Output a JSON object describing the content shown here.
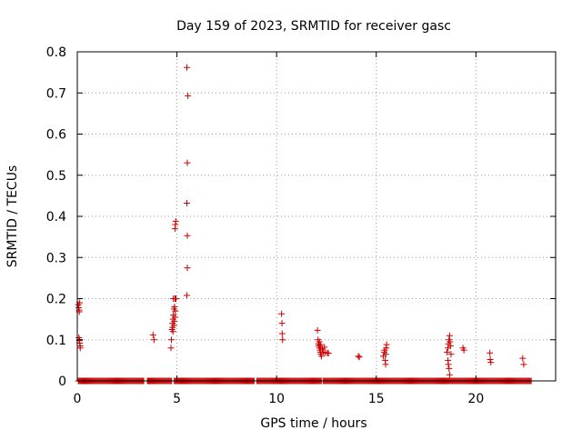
{
  "chart_data": {
    "type": "scatter",
    "title": "Day 159 of 2023, SRMTID for receiver gasc",
    "xlabel": "GPS time / hours",
    "ylabel": "SRMTID / TECUs",
    "xlim": [
      0,
      24
    ],
    "ylim": [
      0,
      0.8
    ],
    "xticks": [
      0,
      5,
      10,
      15,
      20
    ],
    "yticks": [
      0,
      0.1,
      0.2,
      0.3,
      0.4,
      0.5,
      0.6,
      0.7,
      0.8
    ],
    "xtick_labels": [
      "0",
      "5",
      "10",
      "15",
      "20"
    ],
    "ytick_labels": [
      "0",
      "0.1",
      "0.2",
      "0.3",
      "0.4",
      "0.5",
      "0.6",
      "0.7",
      "0.8"
    ],
    "grid": true,
    "marker": "+",
    "color": "#cc0000",
    "zero_baseline": {
      "x_start": 0.05,
      "x_end": 22.8,
      "y": 0,
      "gaps": [
        [
          3.35,
          3.5
        ],
        [
          4.75,
          4.85
        ],
        [
          8.9,
          9.0
        ],
        [
          12.25,
          12.3
        ]
      ]
    },
    "series": [
      {
        "name": "SRMTID",
        "points": [
          [
            0.05,
            0.185
          ],
          [
            0.07,
            0.178
          ],
          [
            0.09,
            0.172
          ],
          [
            0.1,
            0.168
          ],
          [
            0.12,
            0.19
          ],
          [
            0.08,
            0.105
          ],
          [
            0.1,
            0.098
          ],
          [
            0.12,
            0.092
          ],
          [
            0.14,
            0.085
          ],
          [
            0.15,
            0.08
          ],
          [
            0.11,
            0.1
          ],
          [
            3.8,
            0.112
          ],
          [
            3.85,
            0.1
          ],
          [
            4.7,
            0.08
          ],
          [
            4.72,
            0.1
          ],
          [
            4.75,
            0.125
          ],
          [
            4.78,
            0.14
          ],
          [
            4.8,
            0.15
          ],
          [
            4.82,
            0.16
          ],
          [
            4.78,
            0.13
          ],
          [
            4.8,
            0.12
          ],
          [
            4.85,
            0.135
          ],
          [
            4.87,
            0.145
          ],
          [
            4.9,
            0.155
          ],
          [
            4.92,
            0.17
          ],
          [
            4.85,
            0.175
          ],
          [
            4.88,
            0.18
          ],
          [
            4.9,
            0.2
          ],
          [
            4.92,
            0.2
          ],
          [
            4.95,
            0.2
          ],
          [
            4.82,
            0.2
          ],
          [
            4.9,
            0.37
          ],
          [
            4.92,
            0.38
          ],
          [
            4.94,
            0.388
          ],
          [
            5.5,
            0.208
          ],
          [
            5.52,
            0.275
          ],
          [
            5.52,
            0.353
          ],
          [
            5.5,
            0.432
          ],
          [
            5.52,
            0.53
          ],
          [
            5.55,
            0.693
          ],
          [
            5.5,
            0.762
          ],
          [
            10.25,
            0.163
          ],
          [
            10.27,
            0.14
          ],
          [
            10.28,
            0.115
          ],
          [
            10.3,
            0.1
          ],
          [
            12.05,
            0.123
          ],
          [
            12.08,
            0.1
          ],
          [
            12.1,
            0.09
          ],
          [
            12.12,
            0.085
          ],
          [
            12.15,
            0.08
          ],
          [
            12.18,
            0.075
          ],
          [
            12.2,
            0.07
          ],
          [
            12.22,
            0.065
          ],
          [
            12.25,
            0.06
          ],
          [
            12.15,
            0.095
          ],
          [
            12.2,
            0.088
          ],
          [
            12.3,
            0.078
          ],
          [
            12.35,
            0.07
          ],
          [
            12.4,
            0.082
          ],
          [
            12.45,
            0.068
          ],
          [
            12.55,
            0.068
          ],
          [
            12.6,
            0.067
          ],
          [
            14.1,
            0.06
          ],
          [
            14.15,
            0.058
          ],
          [
            15.35,
            0.06
          ],
          [
            15.4,
            0.07
          ],
          [
            15.42,
            0.075
          ],
          [
            15.45,
            0.05
          ],
          [
            15.47,
            0.04
          ],
          [
            15.5,
            0.08
          ],
          [
            15.52,
            0.088
          ],
          [
            15.48,
            0.065
          ],
          [
            18.55,
            0.07
          ],
          [
            18.6,
            0.05
          ],
          [
            18.62,
            0.04
          ],
          [
            18.65,
            0.03
          ],
          [
            18.68,
            0.015
          ],
          [
            18.6,
            0.08
          ],
          [
            18.62,
            0.09
          ],
          [
            18.65,
            0.1
          ],
          [
            18.68,
            0.11
          ],
          [
            18.7,
            0.095
          ],
          [
            18.72,
            0.085
          ],
          [
            18.75,
            0.065
          ],
          [
            19.35,
            0.08
          ],
          [
            19.4,
            0.075
          ],
          [
            20.7,
            0.068
          ],
          [
            20.72,
            0.052
          ],
          [
            20.75,
            0.045
          ],
          [
            22.35,
            0.055
          ],
          [
            22.4,
            0.04
          ]
        ]
      }
    ]
  }
}
